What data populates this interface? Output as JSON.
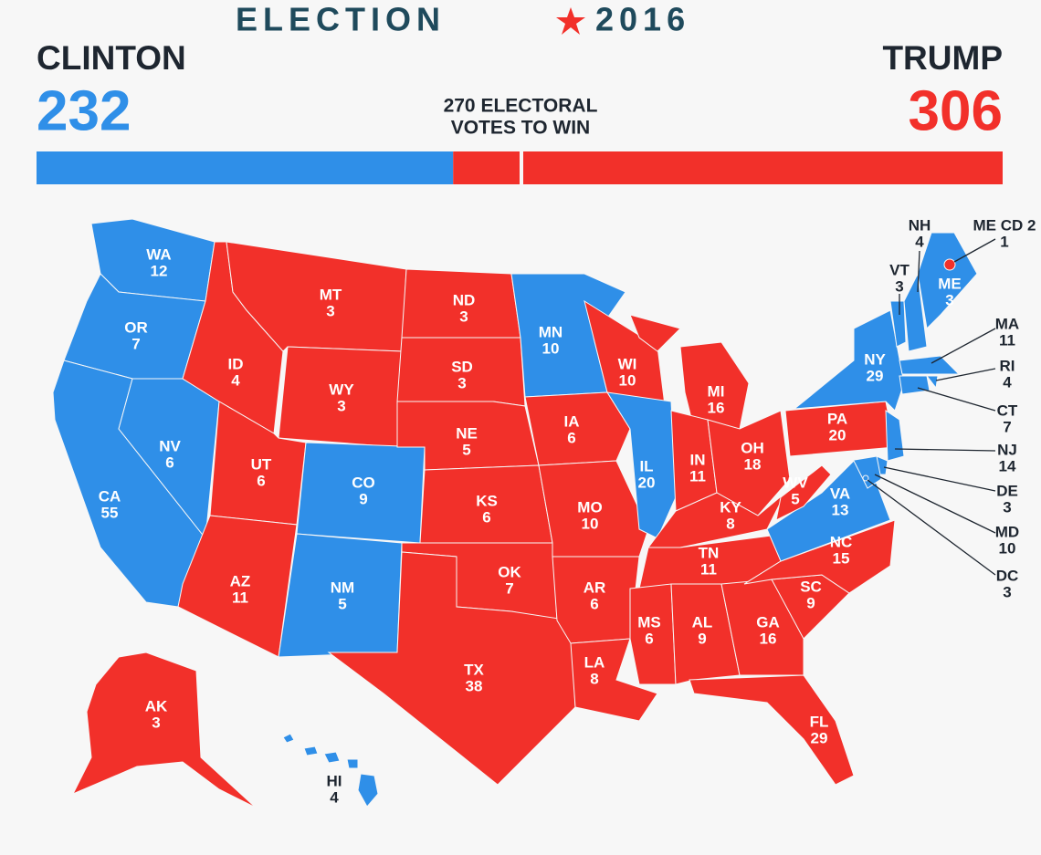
{
  "header": {
    "title_left": "ELECTION",
    "title_right": "2016",
    "threshold_line1": "270 ELECTORAL",
    "threshold_line2": "VOTES TO WIN"
  },
  "candidates": [
    {
      "name": "CLINTON",
      "votes": 232,
      "color": "#2f8fe8"
    },
    {
      "name": "TRUMP",
      "votes": 306,
      "color": "#f2302a"
    }
  ],
  "states": [
    {
      "name": "WA",
      "votes": 12,
      "color": "#2f8fe8"
    },
    {
      "name": "OR",
      "votes": 7,
      "color": "#2f8fe8"
    },
    {
      "name": "CA",
      "votes": 55,
      "color": "#2f8fe8"
    },
    {
      "name": "NV",
      "votes": 6,
      "color": "#2f8fe8"
    },
    {
      "name": "ID",
      "votes": 4,
      "color": "#f2302a"
    },
    {
      "name": "MT",
      "votes": 3,
      "color": "#f2302a"
    },
    {
      "name": "WY",
      "votes": 3,
      "color": "#f2302a"
    },
    {
      "name": "UT",
      "votes": 6,
      "color": "#f2302a"
    },
    {
      "name": "CO",
      "votes": 9,
      "color": "#2f8fe8"
    },
    {
      "name": "AZ",
      "votes": 11,
      "color": "#f2302a"
    },
    {
      "name": "NM",
      "votes": 5,
      "color": "#2f8fe8"
    },
    {
      "name": "ND",
      "votes": 3,
      "color": "#f2302a"
    },
    {
      "name": "SD",
      "votes": 3,
      "color": "#f2302a"
    },
    {
      "name": "NE",
      "votes": 5,
      "color": "#f2302a"
    },
    {
      "name": "KS",
      "votes": 6,
      "color": "#f2302a"
    },
    {
      "name": "OK",
      "votes": 7,
      "color": "#f2302a"
    },
    {
      "name": "TX",
      "votes": 38,
      "color": "#f2302a"
    },
    {
      "name": "MN",
      "votes": 10,
      "color": "#2f8fe8"
    },
    {
      "name": "IA",
      "votes": 6,
      "color": "#f2302a"
    },
    {
      "name": "MO",
      "votes": 10,
      "color": "#f2302a"
    },
    {
      "name": "AR",
      "votes": 6,
      "color": "#f2302a"
    },
    {
      "name": "LA",
      "votes": 8,
      "color": "#f2302a"
    },
    {
      "name": "WI",
      "votes": 10,
      "color": "#f2302a"
    },
    {
      "name": "IL",
      "votes": 20,
      "color": "#2f8fe8"
    },
    {
      "name": "MI",
      "votes": 16,
      "color": "#f2302a"
    },
    {
      "name": "IN",
      "votes": 11,
      "color": "#f2302a"
    },
    {
      "name": "OH",
      "votes": 18,
      "color": "#f2302a"
    },
    {
      "name": "KY",
      "votes": 8,
      "color": "#f2302a"
    },
    {
      "name": "TN",
      "votes": 11,
      "color": "#f2302a"
    },
    {
      "name": "MS",
      "votes": 6,
      "color": "#f2302a"
    },
    {
      "name": "AL",
      "votes": 9,
      "color": "#f2302a"
    },
    {
      "name": "GA",
      "votes": 16,
      "color": "#f2302a"
    },
    {
      "name": "FL",
      "votes": 29,
      "color": "#f2302a"
    },
    {
      "name": "SC",
      "votes": 9,
      "color": "#f2302a"
    },
    {
      "name": "NC",
      "votes": 15,
      "color": "#f2302a"
    },
    {
      "name": "VA",
      "votes": 13,
      "color": "#2f8fe8"
    },
    {
      "name": "WV",
      "votes": 5,
      "color": "#f2302a"
    },
    {
      "name": "PA",
      "votes": 20,
      "color": "#f2302a"
    },
    {
      "name": "NY",
      "votes": 29,
      "color": "#2f8fe8"
    },
    {
      "name": "NJ",
      "votes": 14,
      "color": "#2f8fe8"
    },
    {
      "name": "DE",
      "votes": 3,
      "color": "#2f8fe8"
    },
    {
      "name": "MD",
      "votes": 10,
      "color": "#2f8fe8"
    },
    {
      "name": "DC",
      "votes": 3,
      "color": "#2f8fe8"
    },
    {
      "name": "VT",
      "votes": 3,
      "color": "#2f8fe8"
    },
    {
      "name": "NH",
      "votes": 4,
      "color": "#2f8fe8"
    },
    {
      "name": "ME",
      "votes": 3,
      "color": "#2f8fe8"
    },
    {
      "name": "MA",
      "votes": 11,
      "color": "#2f8fe8"
    },
    {
      "name": "RI",
      "votes": 4,
      "color": "#2f8fe8"
    },
    {
      "name": "CT",
      "votes": 7,
      "color": "#2f8fe8"
    },
    {
      "name": "AK",
      "votes": 3,
      "color": "#f2302a"
    },
    {
      "name": "HI",
      "votes": 4,
      "color": "#2f8fe8"
    },
    {
      "name": "ME CD 2",
      "votes": 1,
      "color": "#f2302a"
    }
  ]
}
